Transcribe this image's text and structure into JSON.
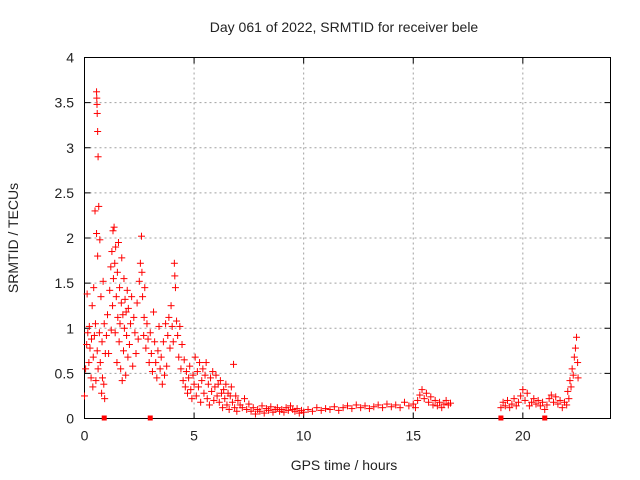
{
  "chart_data": {
    "type": "scatter",
    "title": "Day 061 of 2022, SRMTID for receiver bele",
    "xlabel": "GPS time / hours",
    "ylabel": "SRMTID / TECUs",
    "xlim": [
      0,
      24
    ],
    "ylim": [
      0,
      4
    ],
    "xticks": [
      0,
      5,
      10,
      15,
      20
    ],
    "yticks": [
      0,
      0.5,
      1,
      1.5,
      2,
      2.5,
      3,
      3.5,
      4
    ],
    "xtick_labels": [
      "0",
      "5",
      "10",
      "15",
      "20"
    ],
    "ytick_labels": [
      "0",
      "0.5",
      "1",
      "1.5",
      "2",
      "2.5",
      "3",
      "3.5",
      "4"
    ],
    "grid": true,
    "marker": "+",
    "color": "#ff0000",
    "series": [
      {
        "name": "SRMTID",
        "points": [
          [
            0.0,
            0.25
          ],
          [
            0.05,
            0.55
          ],
          [
            0.1,
            0.82
          ],
          [
            0.12,
            1.38
          ],
          [
            0.15,
            0.95
          ],
          [
            0.2,
            0.62
          ],
          [
            0.22,
            1.02
          ],
          [
            0.25,
            0.78
          ],
          [
            0.3,
            0.45
          ],
          [
            0.32,
            0.88
          ],
          [
            0.35,
            1.25
          ],
          [
            0.38,
            0.35
          ],
          [
            0.4,
            0.68
          ],
          [
            0.42,
            1.45
          ],
          [
            0.45,
            0.92
          ],
          [
            0.48,
            2.3
          ],
          [
            0.5,
            1.05
          ],
          [
            0.52,
            0.42
          ],
          [
            0.55,
            2.05
          ],
          [
            0.58,
            0.75
          ],
          [
            0.6,
            1.8
          ],
          [
            0.62,
            0.55
          ],
          [
            0.65,
            2.35
          ],
          [
            0.68,
            0.95
          ],
          [
            0.7,
            1.98
          ],
          [
            0.72,
            0.62
          ],
          [
            0.75,
            1.35
          ],
          [
            0.78,
            0.28
          ],
          [
            0.8,
            0.85
          ],
          [
            0.82,
            0.45
          ],
          [
            0.85,
            1.52
          ],
          [
            0.88,
            0.38
          ],
          [
            0.9,
            1.05
          ],
          [
            0.92,
            0.22
          ],
          [
            0.95,
            0.72
          ],
          [
            0.55,
            3.62
          ],
          [
            0.56,
            3.55
          ],
          [
            0.57,
            3.48
          ],
          [
            0.58,
            3.38
          ],
          [
            0.6,
            3.18
          ],
          [
            0.62,
            2.9
          ],
          [
            1.0,
            0.92
          ],
          [
            1.05,
            1.15
          ],
          [
            1.1,
            0.72
          ],
          [
            1.15,
            1.42
          ],
          [
            1.2,
            1.68
          ],
          [
            1.22,
            0.98
          ],
          [
            1.25,
            1.85
          ],
          [
            1.28,
            1.25
          ],
          [
            1.3,
            2.08
          ],
          [
            1.32,
            1.55
          ],
          [
            1.35,
            2.12
          ],
          [
            1.38,
            1.72
          ],
          [
            1.4,
            0.95
          ],
          [
            1.42,
            1.9
          ],
          [
            1.45,
            1.35
          ],
          [
            1.48,
            0.62
          ],
          [
            1.5,
            1.62
          ],
          [
            1.52,
            1.12
          ],
          [
            1.55,
            1.95
          ],
          [
            1.58,
            0.85
          ],
          [
            1.6,
            1.45
          ],
          [
            1.62,
            1.05
          ],
          [
            1.65,
            0.55
          ],
          [
            1.68,
            1.28
          ],
          [
            1.7,
            1.78
          ],
          [
            1.72,
            0.42
          ],
          [
            1.75,
            1.15
          ],
          [
            1.78,
            0.75
          ],
          [
            1.8,
            1.55
          ],
          [
            1.82,
            1.0
          ],
          [
            1.85,
            1.32
          ],
          [
            1.88,
            0.48
          ],
          [
            1.9,
            1.18
          ],
          [
            1.92,
            0.92
          ],
          [
            1.95,
            1.42
          ],
          [
            1.98,
            0.68
          ],
          [
            2.0,
            1.22
          ],
          [
            2.05,
            0.82
          ],
          [
            2.1,
            1.05
          ],
          [
            2.15,
            1.35
          ],
          [
            2.2,
            0.58
          ],
          [
            2.25,
            1.12
          ],
          [
            2.3,
            0.95
          ],
          [
            2.35,
            0.72
          ],
          [
            2.4,
            1.28
          ],
          [
            2.45,
            0.88
          ],
          [
            2.5,
            1.52
          ],
          [
            2.55,
            1.72
          ],
          [
            2.6,
            2.02
          ],
          [
            2.62,
            1.62
          ],
          [
            2.65,
            1.35
          ],
          [
            2.7,
            0.92
          ],
          [
            2.72,
            1.12
          ],
          [
            2.75,
            1.45
          ],
          [
            2.8,
            0.78
          ],
          [
            2.85,
            1.05
          ],
          [
            2.9,
            0.88
          ],
          [
            2.95,
            0.62
          ],
          [
            3.0,
            0.95
          ],
          [
            3.05,
            0.72
          ],
          [
            3.1,
            0.52
          ],
          [
            3.15,
            1.18
          ],
          [
            3.2,
            0.85
          ],
          [
            3.25,
            0.62
          ],
          [
            3.3,
            0.45
          ],
          [
            3.35,
            0.75
          ],
          [
            3.4,
            1.02
          ],
          [
            3.45,
            0.55
          ],
          [
            3.5,
            0.68
          ],
          [
            3.55,
            0.38
          ],
          [
            3.6,
            0.85
          ],
          [
            3.65,
            0.48
          ],
          [
            3.7,
            1.05
          ],
          [
            3.75,
            0.58
          ],
          [
            3.8,
            0.92
          ],
          [
            3.85,
            1.12
          ],
          [
            3.9,
            0.78
          ],
          [
            3.95,
            1.25
          ],
          [
            4.0,
            1.02
          ],
          [
            4.05,
            0.85
          ],
          [
            4.1,
            1.72
          ],
          [
            4.12,
            1.58
          ],
          [
            4.15,
            1.45
          ],
          [
            4.2,
            1.08
          ],
          [
            4.25,
            0.92
          ],
          [
            4.3,
            0.68
          ],
          [
            4.35,
            1.02
          ],
          [
            4.4,
            0.55
          ],
          [
            4.45,
            0.82
          ],
          [
            4.5,
            0.42
          ],
          [
            4.55,
            0.65
          ],
          [
            4.6,
            0.35
          ],
          [
            4.65,
            0.52
          ],
          [
            4.7,
            0.28
          ],
          [
            4.75,
            0.45
          ],
          [
            4.8,
            0.58
          ],
          [
            4.85,
            0.32
          ],
          [
            4.9,
            0.22
          ],
          [
            4.95,
            0.48
          ],
          [
            5.0,
            0.38
          ],
          [
            5.05,
            0.68
          ],
          [
            5.1,
            0.25
          ],
          [
            5.15,
            0.52
          ],
          [
            5.2,
            0.35
          ],
          [
            5.25,
            0.62
          ],
          [
            5.3,
            0.18
          ],
          [
            5.35,
            0.42
          ],
          [
            5.4,
            0.55
          ],
          [
            5.45,
            0.28
          ],
          [
            5.5,
            0.48
          ],
          [
            5.55,
            0.62
          ],
          [
            5.6,
            0.22
          ],
          [
            5.65,
            0.38
          ],
          [
            5.7,
            0.15
          ],
          [
            5.75,
            0.45
          ],
          [
            5.8,
            0.3
          ],
          [
            5.85,
            0.52
          ],
          [
            5.9,
            0.2
          ],
          [
            5.95,
            0.35
          ],
          [
            6.0,
            0.48
          ],
          [
            6.05,
            0.25
          ],
          [
            6.1,
            0.38
          ],
          [
            6.15,
            0.18
          ],
          [
            6.2,
            0.42
          ],
          [
            6.25,
            0.28
          ],
          [
            6.3,
            0.12
          ],
          [
            6.35,
            0.32
          ],
          [
            6.4,
            0.22
          ],
          [
            6.45,
            0.38
          ],
          [
            6.5,
            0.15
          ],
          [
            6.55,
            0.28
          ],
          [
            6.6,
            0.1
          ],
          [
            6.65,
            0.25
          ],
          [
            6.7,
            0.35
          ],
          [
            6.75,
            0.18
          ],
          [
            6.8,
            0.6
          ],
          [
            6.85,
            0.12
          ],
          [
            6.9,
            0.25
          ],
          [
            6.95,
            0.08
          ],
          [
            7.0,
            0.2
          ],
          [
            7.1,
            0.15
          ],
          [
            7.2,
            0.12
          ],
          [
            7.3,
            0.22
          ],
          [
            7.4,
            0.1
          ],
          [
            7.5,
            0.16
          ],
          [
            7.6,
            0.08
          ],
          [
            7.7,
            0.12
          ],
          [
            7.8,
            0.05
          ],
          [
            7.9,
            0.1
          ],
          [
            8.0,
            0.08
          ],
          [
            8.1,
            0.14
          ],
          [
            8.2,
            0.06
          ],
          [
            8.3,
            0.11
          ],
          [
            8.4,
            0.09
          ],
          [
            8.5,
            0.13
          ],
          [
            8.6,
            0.07
          ],
          [
            8.7,
            0.1
          ],
          [
            8.8,
            0.12
          ],
          [
            8.9,
            0.08
          ],
          [
            9.0,
            0.1
          ],
          [
            9.1,
            0.07
          ],
          [
            9.2,
            0.12
          ],
          [
            9.3,
            0.09
          ],
          [
            9.4,
            0.14
          ],
          [
            9.5,
            0.1
          ],
          [
            9.6,
            0.08
          ],
          [
            9.7,
            0.11
          ],
          [
            9.8,
            0.06
          ],
          [
            9.9,
            0.09
          ],
          [
            10.0,
            0.07
          ],
          [
            10.2,
            0.1
          ],
          [
            10.4,
            0.08
          ],
          [
            10.6,
            0.12
          ],
          [
            10.8,
            0.09
          ],
          [
            11.0,
            0.11
          ],
          [
            11.2,
            0.1
          ],
          [
            11.4,
            0.13
          ],
          [
            11.6,
            0.09
          ],
          [
            11.8,
            0.12
          ],
          [
            12.0,
            0.14
          ],
          [
            12.2,
            0.11
          ],
          [
            12.4,
            0.15
          ],
          [
            12.6,
            0.12
          ],
          [
            12.8,
            0.14
          ],
          [
            13.0,
            0.11
          ],
          [
            13.2,
            0.13
          ],
          [
            13.4,
            0.15
          ],
          [
            13.6,
            0.12
          ],
          [
            13.8,
            0.16
          ],
          [
            14.0,
            0.13
          ],
          [
            14.2,
            0.15
          ],
          [
            14.4,
            0.12
          ],
          [
            14.6,
            0.18
          ],
          [
            14.8,
            0.14
          ],
          [
            15.0,
            0.16
          ],
          [
            15.1,
            0.12
          ],
          [
            15.2,
            0.2
          ],
          [
            15.3,
            0.26
          ],
          [
            15.4,
            0.32
          ],
          [
            15.5,
            0.22
          ],
          [
            15.6,
            0.28
          ],
          [
            15.7,
            0.18
          ],
          [
            15.8,
            0.24
          ],
          [
            15.9,
            0.15
          ],
          [
            16.0,
            0.2
          ],
          [
            16.1,
            0.14
          ],
          [
            16.2,
            0.18
          ],
          [
            16.3,
            0.12
          ],
          [
            16.4,
            0.16
          ],
          [
            16.5,
            0.2
          ],
          [
            16.6,
            0.15
          ],
          [
            16.7,
            0.17
          ],
          [
            19.0,
            0.12
          ],
          [
            19.1,
            0.18
          ],
          [
            19.2,
            0.14
          ],
          [
            19.3,
            0.2
          ],
          [
            19.4,
            0.12
          ],
          [
            19.5,
            0.16
          ],
          [
            19.6,
            0.22
          ],
          [
            19.7,
            0.14
          ],
          [
            19.8,
            0.18
          ],
          [
            19.9,
            0.25
          ],
          [
            20.0,
            0.32
          ],
          [
            20.1,
            0.2
          ],
          [
            20.2,
            0.28
          ],
          [
            20.3,
            0.14
          ],
          [
            20.4,
            0.18
          ],
          [
            20.5,
            0.22
          ],
          [
            20.6,
            0.16
          ],
          [
            20.7,
            0.2
          ],
          [
            20.8,
            0.14
          ],
          [
            20.9,
            0.18
          ],
          [
            21.0,
            0.1
          ],
          [
            21.1,
            0.15
          ],
          [
            21.2,
            0.22
          ],
          [
            21.3,
            0.26
          ],
          [
            21.4,
            0.18
          ],
          [
            21.5,
            0.24
          ],
          [
            21.6,
            0.16
          ],
          [
            21.7,
            0.2
          ],
          [
            21.8,
            0.12
          ],
          [
            21.9,
            0.18
          ],
          [
            22.0,
            0.15
          ],
          [
            22.05,
            0.3
          ],
          [
            22.1,
            0.22
          ],
          [
            22.15,
            0.42
          ],
          [
            22.2,
            0.35
          ],
          [
            22.25,
            0.55
          ],
          [
            22.3,
            0.48
          ],
          [
            22.35,
            0.68
          ],
          [
            22.4,
            0.78
          ],
          [
            22.45,
            0.9
          ],
          [
            22.5,
            0.62
          ],
          [
            22.52,
            0.45
          ]
        ],
        "baseline_points": [
          [
            0.9,
            0.0
          ],
          [
            3.0,
            0.0
          ],
          [
            19.0,
            0.0
          ],
          [
            21.0,
            0.0
          ]
        ]
      }
    ]
  }
}
